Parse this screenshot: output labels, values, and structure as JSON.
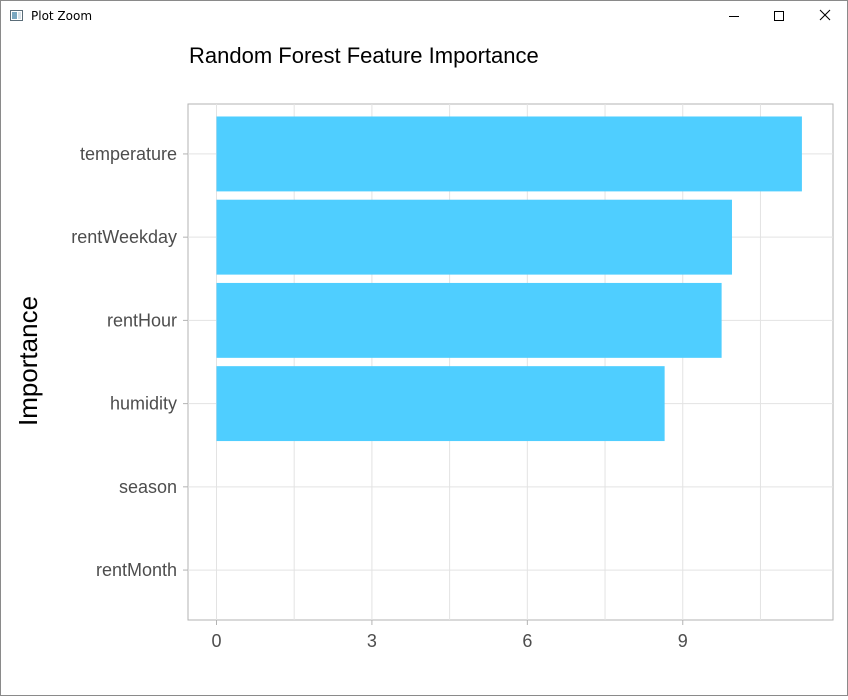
{
  "window": {
    "title": "Plot Zoom",
    "buttons": {
      "minimize": "minimize-icon",
      "maximize": "maximize-icon",
      "close": "close-icon"
    }
  },
  "chart_data": {
    "type": "bar",
    "orientation": "horizontal",
    "title": "Random Forest Feature Importance",
    "xlabel": "",
    "ylabel": "Importance",
    "categories": [
      "temperature",
      "rentWeekday",
      "rentHour",
      "humidity",
      "season",
      "rentMonth"
    ],
    "values": [
      11.3,
      9.95,
      9.75,
      8.65,
      0,
      0
    ],
    "xlim": [
      -0.55,
      11.9
    ],
    "xticks": [
      0,
      3,
      6,
      9
    ],
    "grid": true,
    "bar_color": "#4FCEFF"
  }
}
